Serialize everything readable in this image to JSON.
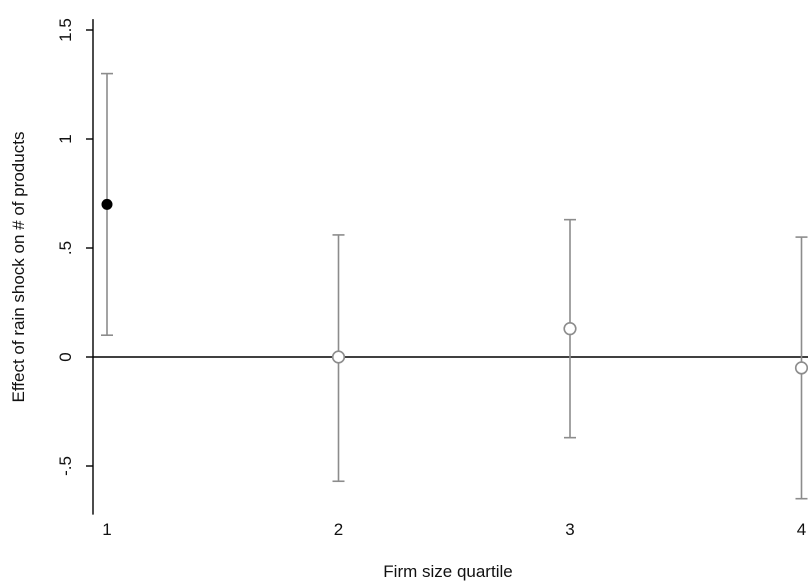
{
  "chart_data": {
    "type": "scatter",
    "title": "",
    "xlabel": "Firm size quartile",
    "ylabel": "Effect of rain shock on # of products",
    "x_ticks": [
      1,
      2,
      3,
      4
    ],
    "x_tick_labels": [
      "1",
      "2",
      "3",
      "4"
    ],
    "y_ticks": [
      -0.5,
      0,
      0.5,
      1,
      1.5
    ],
    "y_tick_labels": [
      "-.5",
      "0",
      ".5",
      "1",
      "1.5"
    ],
    "xlim": [
      1,
      4
    ],
    "ylim": [
      -0.7,
      1.55
    ],
    "zero_line": true,
    "grid": false,
    "points": [
      {
        "x": 1,
        "estimate": 0.7,
        "ci_low": 0.1,
        "ci_high": 1.3,
        "marker": "filled"
      },
      {
        "x": 2,
        "estimate": 0.0,
        "ci_low": -0.57,
        "ci_high": 0.56,
        "marker": "hollow"
      },
      {
        "x": 3,
        "estimate": 0.13,
        "ci_low": -0.37,
        "ci_high": 0.63,
        "marker": "hollow"
      },
      {
        "x": 4,
        "estimate": -0.05,
        "ci_low": -0.65,
        "ci_high": 0.55,
        "marker": "hollow"
      }
    ],
    "colors": {
      "filled_marker": "#000000",
      "hollow_marker": "#8c8c8c",
      "ci_line": "#8c8c8c",
      "axis": "#000000",
      "zero_line": "#000000"
    }
  }
}
